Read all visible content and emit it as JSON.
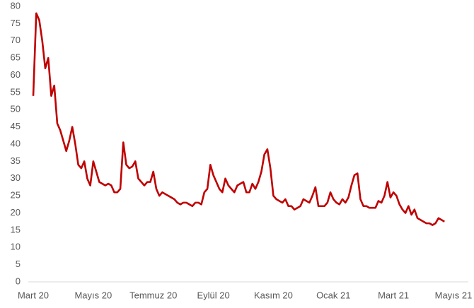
{
  "chart_data": {
    "type": "line",
    "categories": [
      "Mart 20",
      null,
      null,
      null,
      null,
      null,
      null,
      null,
      null,
      null,
      null,
      null,
      null,
      null,
      null,
      null,
      null,
      null,
      null,
      null,
      "Mayıs 20",
      null,
      null,
      null,
      null,
      null,
      null,
      null,
      null,
      null,
      null,
      null,
      null,
      null,
      null,
      null,
      null,
      null,
      null,
      null,
      "Temmuz 20",
      null,
      null,
      null,
      null,
      null,
      null,
      null,
      null,
      null,
      null,
      null,
      null,
      null,
      null,
      null,
      null,
      null,
      null,
      null,
      "Eylül 20",
      null,
      null,
      null,
      null,
      null,
      null,
      null,
      null,
      null,
      null,
      null,
      null,
      null,
      null,
      null,
      null,
      null,
      null,
      null,
      "Kasım 20",
      null,
      null,
      null,
      null,
      null,
      null,
      null,
      null,
      null,
      null,
      null,
      null,
      null,
      null,
      null,
      null,
      null,
      null,
      null,
      "Ocak 21",
      null,
      null,
      null,
      null,
      null,
      null,
      null,
      null,
      null,
      null,
      null,
      null,
      null,
      null,
      null,
      null,
      null,
      null,
      null,
      "Mart 21",
      null,
      null,
      null,
      null,
      null,
      null,
      null,
      null,
      null,
      null,
      null,
      null,
      null,
      null,
      null,
      null,
      null,
      null,
      null,
      "Mayıs 21"
    ],
    "values": [
      54,
      78,
      76,
      70,
      62,
      65,
      54,
      57,
      46,
      44,
      41,
      38,
      41,
      45,
      40,
      34,
      33,
      35,
      30,
      28,
      35,
      32,
      29,
      28.5,
      28,
      28.5,
      28,
      26,
      26,
      27,
      40.5,
      34,
      33,
      33.5,
      35,
      30,
      29,
      28,
      29,
      29,
      32,
      27,
      25,
      26,
      25.5,
      25,
      24.5,
      24,
      23,
      22.5,
      23,
      23,
      22.5,
      22,
      23,
      23,
      22.5,
      26,
      27,
      34,
      31,
      29,
      27,
      26,
      30,
      28,
      27,
      26,
      28,
      28.5,
      29,
      26,
      26,
      28.5,
      27,
      29,
      32,
      37,
      38.5,
      33,
      25,
      24,
      23.5,
      23,
      24,
      22,
      22,
      21,
      21.5,
      22,
      24,
      23.5,
      23,
      25,
      27.5,
      22,
      22,
      22,
      23,
      26,
      24,
      23,
      22.5,
      24,
      23,
      24.5,
      28,
      31,
      31.5,
      24,
      22,
      22,
      21.5,
      21.5,
      21.5,
      23.5,
      23,
      25,
      29,
      24.5,
      26,
      25,
      22.5,
      21,
      20,
      22,
      19.5,
      21,
      18.5,
      18,
      17.5,
      17,
      17,
      16.5,
      17,
      18.5,
      18,
      17.5,
      null,
      null,
      null
    ],
    "color": "#c00000",
    "ylim": [
      0,
      80
    ],
    "yticks": [
      0,
      5,
      10,
      15,
      20,
      25,
      30,
      35,
      40,
      45,
      50,
      55,
      60,
      65,
      70,
      75,
      80
    ]
  }
}
